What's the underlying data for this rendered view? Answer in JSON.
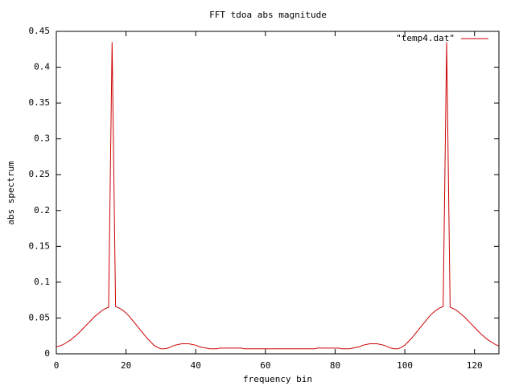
{
  "chart_data": {
    "type": "line",
    "title": "FFT tdoa abs magnitude",
    "xlabel": "frequency bin",
    "ylabel": "abs spectrum",
    "xlim": [
      0,
      127
    ],
    "ylim": [
      0,
      0.45
    ],
    "xticks": [
      0,
      20,
      40,
      60,
      80,
      100,
      120
    ],
    "yticks": [
      0,
      0.05,
      0.1,
      0.15,
      0.2,
      0.25,
      0.3,
      0.35,
      0.4,
      0.45
    ],
    "grid": false,
    "legend": "top-right",
    "x": [
      0,
      1,
      2,
      3,
      4,
      5,
      6,
      7,
      8,
      9,
      10,
      11,
      12,
      13,
      14,
      15,
      16,
      17,
      18,
      19,
      20,
      21,
      22,
      23,
      24,
      25,
      26,
      27,
      28,
      29,
      30,
      31,
      32,
      33,
      34,
      35,
      36,
      37,
      38,
      39,
      40,
      41,
      42,
      43,
      44,
      45,
      46,
      47,
      48,
      49,
      50,
      51,
      52,
      53,
      54,
      55,
      56,
      57,
      58,
      59,
      60,
      61,
      62,
      63,
      64,
      65,
      66,
      67,
      68,
      69,
      70,
      71,
      72,
      73,
      74,
      75,
      76,
      77,
      78,
      79,
      80,
      81,
      82,
      83,
      84,
      85,
      86,
      87,
      88,
      89,
      90,
      91,
      92,
      93,
      94,
      95,
      96,
      97,
      98,
      99,
      100,
      101,
      102,
      103,
      104,
      105,
      106,
      107,
      108,
      109,
      110,
      111,
      112,
      113,
      114,
      115,
      116,
      117,
      118,
      119,
      120,
      121,
      122,
      123,
      124,
      125,
      126,
      127
    ],
    "series": [
      {
        "name": "\"temp4.dat\"",
        "color": "#cc0000",
        "values": [
          0.01,
          0.011,
          0.013,
          0.016,
          0.019,
          0.023,
          0.027,
          0.032,
          0.037,
          0.042,
          0.047,
          0.052,
          0.056,
          0.06,
          0.063,
          0.065,
          0.435,
          0.066,
          0.064,
          0.061,
          0.057,
          0.052,
          0.046,
          0.04,
          0.034,
          0.028,
          0.022,
          0.017,
          0.012,
          0.009,
          0.007,
          0.007,
          0.008,
          0.01,
          0.012,
          0.013,
          0.014,
          0.014,
          0.014,
          0.013,
          0.012,
          0.01,
          0.009,
          0.008,
          0.007,
          0.007,
          0.007,
          0.008,
          0.008,
          0.008,
          0.008,
          0.008,
          0.008,
          0.008,
          0.007,
          0.007,
          0.007,
          0.007,
          0.007,
          0.007,
          0.007,
          0.007,
          0.007,
          0.007,
          0.007,
          0.007,
          0.007,
          0.007,
          0.007,
          0.007,
          0.007,
          0.007,
          0.007,
          0.007,
          0.007,
          0.008,
          0.008,
          0.008,
          0.008,
          0.008,
          0.008,
          0.008,
          0.007,
          0.007,
          0.007,
          0.008,
          0.009,
          0.01,
          0.012,
          0.013,
          0.014,
          0.014,
          0.014,
          0.013,
          0.012,
          0.01,
          0.008,
          0.007,
          0.007,
          0.009,
          0.012,
          0.017,
          0.022,
          0.028,
          0.034,
          0.04,
          0.046,
          0.052,
          0.057,
          0.061,
          0.064,
          0.066,
          0.435,
          0.065,
          0.063,
          0.06,
          0.056,
          0.052,
          0.047,
          0.042,
          0.037,
          0.032,
          0.027,
          0.023,
          0.019,
          0.016,
          0.013,
          0.011
        ]
      }
    ]
  }
}
